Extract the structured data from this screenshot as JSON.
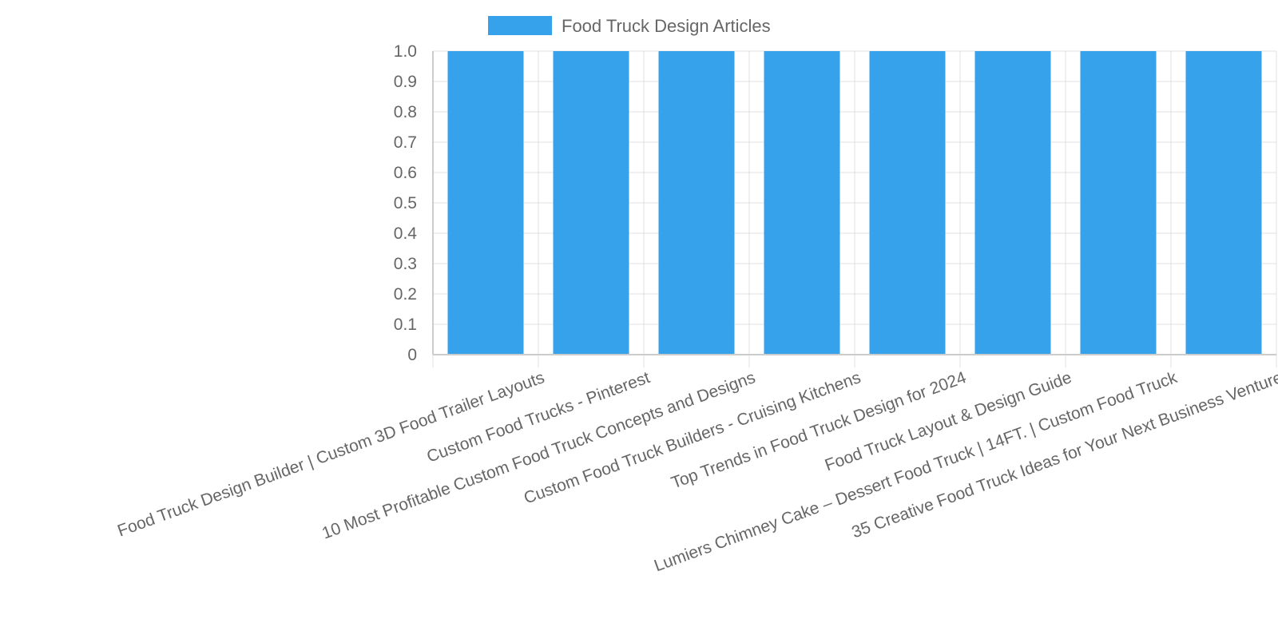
{
  "chart_data": {
    "type": "bar",
    "categories": [
      "Food Truck Design Builder | Custom 3D Food Trailer Layouts",
      "Custom Food Trucks - Pinterest",
      "10 Most Profitable Custom Food Truck Concepts and Designs",
      "Custom Food Truck Builders - Cruising Kitchens",
      "Top Trends in Food Truck Design for 2024",
      "Food Truck Layout & Design Guide",
      "Lumiers Chimney Cake – Dessert Food Truck | 14FT. | Custom Food Truck",
      "35 Creative Food Truck Ideas for Your Next Business Venture"
    ],
    "series": [
      {
        "name": "Food Truck Design Articles",
        "values": [
          1,
          1,
          1,
          1,
          1,
          1,
          1,
          1
        ],
        "color": "#36a2eb"
      }
    ],
    "ylim": [
      0,
      1
    ],
    "yticks": [
      "0",
      "0.1",
      "0.2",
      "0.3",
      "0.4",
      "0.5",
      "0.6",
      "0.7",
      "0.8",
      "0.9",
      "1.0"
    ],
    "grid": true,
    "legend_position": "top"
  }
}
